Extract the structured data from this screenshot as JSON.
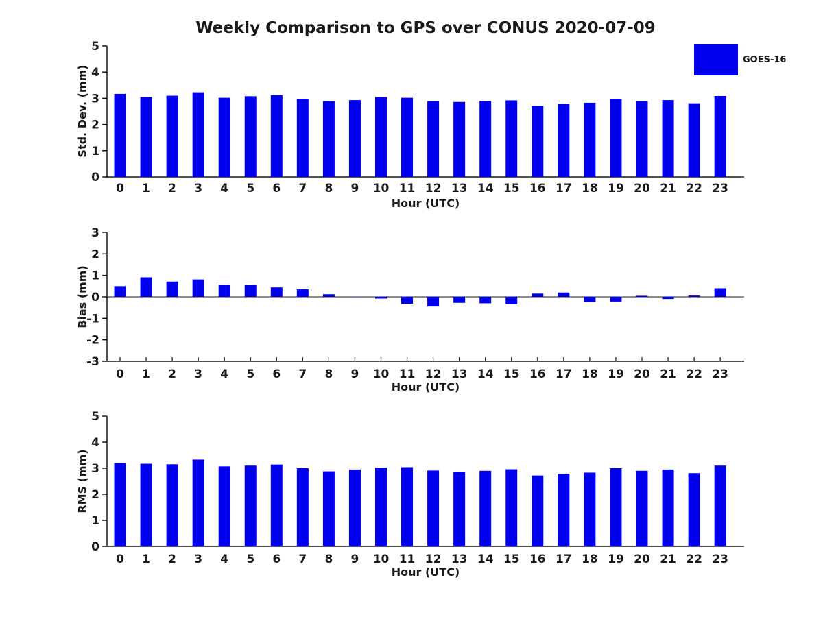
{
  "title": "Weekly Comparison to GPS over CONUS 2020-07-09",
  "legend": {
    "label": "GOES-16",
    "swatch_color": "#0000EE",
    "position": "top-right"
  },
  "colors": {
    "bar": "#0000EE",
    "axis": "#1a1a1a",
    "text": "#1a1a1a",
    "background": "#ffffff"
  },
  "chart_data": [
    {
      "type": "bar",
      "name": "std-dev-by-hour",
      "title": "",
      "ylabel": "Std. Dev. (mm)",
      "xlabel": "Hour (UTC)",
      "ylim": [
        0,
        5
      ],
      "yticks": [
        0,
        1,
        2,
        3,
        4,
        5
      ],
      "grid": false,
      "categories": [
        "0",
        "1",
        "2",
        "3",
        "4",
        "5",
        "6",
        "7",
        "8",
        "9",
        "10",
        "11",
        "12",
        "13",
        "14",
        "15",
        "16",
        "17",
        "18",
        "19",
        "20",
        "21",
        "22",
        "23"
      ],
      "series": [
        {
          "name": "GOES-16",
          "values": [
            3.17,
            3.05,
            3.1,
            3.23,
            3.02,
            3.08,
            3.12,
            2.98,
            2.89,
            2.93,
            3.05,
            3.02,
            2.89,
            2.86,
            2.9,
            2.92,
            2.72,
            2.8,
            2.83,
            2.98,
            2.89,
            2.93,
            2.81,
            3.09
          ]
        }
      ]
    },
    {
      "type": "bar",
      "name": "bias-by-hour",
      "title": "",
      "ylabel": "Bias (mm)",
      "xlabel": "Hour (UTC)",
      "ylim": [
        -3,
        3
      ],
      "yticks": [
        3,
        2,
        1,
        0,
        -1,
        -2,
        -3
      ],
      "grid": false,
      "categories": [
        "0",
        "1",
        "2",
        "3",
        "4",
        "5",
        "6",
        "7",
        "8",
        "9",
        "10",
        "11",
        "12",
        "13",
        "14",
        "15",
        "16",
        "17",
        "18",
        "19",
        "20",
        "21",
        "22",
        "23"
      ],
      "series": [
        {
          "name": "GOES-16",
          "values": [
            0.5,
            0.91,
            0.71,
            0.81,
            0.57,
            0.55,
            0.44,
            0.35,
            0.12,
            0.01,
            -0.08,
            -0.32,
            -0.45,
            -0.28,
            -0.3,
            -0.35,
            0.15,
            0.2,
            -0.23,
            -0.22,
            0.05,
            -0.1,
            0.06,
            0.4
          ]
        }
      ]
    },
    {
      "type": "bar",
      "name": "rms-by-hour",
      "title": "",
      "ylabel": "RMS (mm)",
      "xlabel": "Hour (UTC)",
      "ylim": [
        0,
        5
      ],
      "yticks": [
        0,
        1,
        2,
        3,
        4,
        5
      ],
      "grid": false,
      "categories": [
        "0",
        "1",
        "2",
        "3",
        "4",
        "5",
        "6",
        "7",
        "8",
        "9",
        "10",
        "11",
        "12",
        "13",
        "14",
        "15",
        "16",
        "17",
        "18",
        "19",
        "20",
        "21",
        "22",
        "23"
      ],
      "series": [
        {
          "name": "GOES-16",
          "values": [
            3.2,
            3.17,
            3.15,
            3.33,
            3.07,
            3.1,
            3.14,
            3.0,
            2.88,
            2.95,
            3.02,
            3.04,
            2.91,
            2.86,
            2.9,
            2.96,
            2.72,
            2.79,
            2.83,
            3.0,
            2.9,
            2.95,
            2.81,
            3.1
          ]
        }
      ]
    }
  ]
}
